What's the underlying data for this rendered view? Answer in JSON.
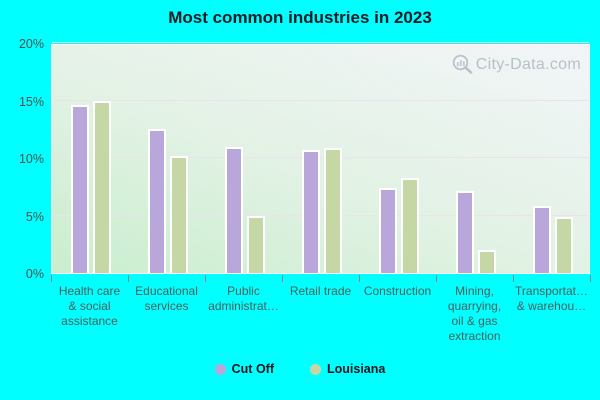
{
  "title": "Most common industries in 2023",
  "watermark": {
    "text": "City-Data.com"
  },
  "colors": {
    "page_background": "#00ffff",
    "cut_off_bar": "#b9a6da",
    "louisiana_bar": "#c5d7a5",
    "bar_border": "#ffffff",
    "gridline": "#ebe3ec",
    "axis_text": "#4e5e5c",
    "title_text": "#1c1c24",
    "legend_text": "#14141c",
    "watermark_text": "#97a1ab"
  },
  "chart_data": {
    "type": "bar",
    "title": "Most common industries in 2023",
    "categories": [
      "Health care & social assistance",
      "Educational services",
      "Public administrat…",
      "Retail trade",
      "Construction",
      "Mining, quarrying, oil & gas extraction",
      "Transportat… & warehou…"
    ],
    "category_label_lines": [
      [
        "Health care",
        "& social",
        "assistance"
      ],
      [
        "Educational",
        "services"
      ],
      [
        "Public",
        "administrat…"
      ],
      [
        "Retail trade"
      ],
      [
        "Construction"
      ],
      [
        "Mining,",
        "quarrying,",
        "oil & gas",
        "extraction"
      ],
      [
        "Transportat…",
        "& warehou…"
      ]
    ],
    "series": [
      {
        "name": "Cut Off",
        "color": "#b9a6da",
        "values": [
          14.6,
          12.5,
          11.0,
          10.7,
          7.4,
          7.1,
          5.8
        ]
      },
      {
        "name": "Louisiana",
        "color": "#c5d7a5",
        "values": [
          15.0,
          10.2,
          5.0,
          10.9,
          8.3,
          2.0,
          4.9
        ]
      }
    ],
    "xlabel": "",
    "ylabel": "",
    "ylim": [
      0,
      20
    ],
    "ytick_labels": [
      "0%",
      "5%",
      "10%",
      "15%",
      "20%"
    ],
    "grid": true,
    "legend_position": "bottom"
  }
}
